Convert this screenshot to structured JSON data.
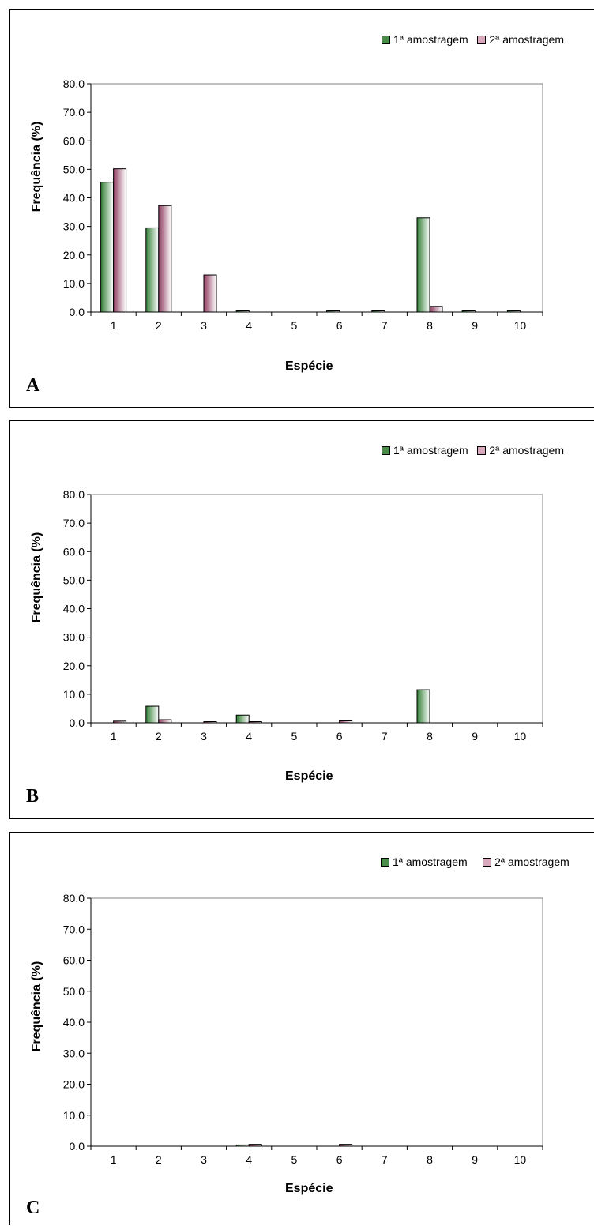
{
  "colors": {
    "series1_dark": "#2e7d32",
    "series1_light": "#ffffff",
    "series2_dark": "#8e3a5e",
    "series2_light": "#ffffff",
    "legend_swatch1": "#4a8c4a",
    "legend_swatch2": "#d9a8bd",
    "axis": "#808080"
  },
  "chart_data": [
    {
      "type": "bar",
      "panel_label": "A",
      "xlabel": "Espécie",
      "ylabel": "Frequência (%)",
      "ylim": [
        0,
        80
      ],
      "yticks": [
        "0.0",
        "10.0",
        "20.0",
        "30.0",
        "40.0",
        "50.0",
        "60.0",
        "70.0",
        "80.0"
      ],
      "categories": [
        "1",
        "2",
        "3",
        "4",
        "5",
        "6",
        "7",
        "8",
        "9",
        "10"
      ],
      "series": [
        {
          "name": "1ª amostragem",
          "values": [
            45.5,
            29.5,
            0,
            0.3,
            0,
            0.3,
            0.3,
            33.0,
            0.3,
            0.3
          ]
        },
        {
          "name": "2ª amostragem",
          "values": [
            50.2,
            37.3,
            13.0,
            0,
            0,
            0,
            0,
            2.0,
            0,
            0
          ]
        }
      ],
      "legend": "top-right",
      "grid": false
    },
    {
      "type": "bar",
      "panel_label": "B",
      "xlabel": "Espécie",
      "ylabel": "Frequência (%)",
      "ylim": [
        0,
        80
      ],
      "yticks": [
        "0.0",
        "10.0",
        "20.0",
        "30.0",
        "40.0",
        "50.0",
        "60.0",
        "70.0",
        "80.0"
      ],
      "categories": [
        "1",
        "2",
        "3",
        "4",
        "5",
        "6",
        "7",
        "8",
        "9",
        "10"
      ],
      "series": [
        {
          "name": "1ª amostragem",
          "values": [
            0,
            5.8,
            0,
            2.7,
            0,
            0,
            0,
            11.6,
            0,
            0
          ]
        },
        {
          "name": "2ª amostragem",
          "values": [
            0.6,
            1.1,
            0.3,
            0.4,
            0,
            0.7,
            0,
            0,
            0,
            0
          ]
        }
      ],
      "legend": "top-right",
      "grid": false
    },
    {
      "type": "bar",
      "panel_label": "C",
      "xlabel": "Espécie",
      "ylabel": "Frequência (%)",
      "ylim": [
        0,
        80
      ],
      "yticks": [
        "0.0",
        "10.0",
        "20.0",
        "30.0",
        "40.0",
        "50.0",
        "60.0",
        "70.0",
        "80.0"
      ],
      "categories": [
        "1",
        "2",
        "3",
        "4",
        "5",
        "6",
        "7",
        "8",
        "9",
        "10"
      ],
      "series": [
        {
          "name": "1ª amostragem",
          "values": [
            0,
            0,
            0,
            0.4,
            0,
            0,
            0,
            0,
            0,
            0
          ]
        },
        {
          "name": "2ª amostragem",
          "values": [
            0,
            0,
            0,
            0.6,
            0,
            0.6,
            0,
            0,
            0,
            0
          ]
        }
      ],
      "legend": "top-right",
      "grid": false
    }
  ]
}
